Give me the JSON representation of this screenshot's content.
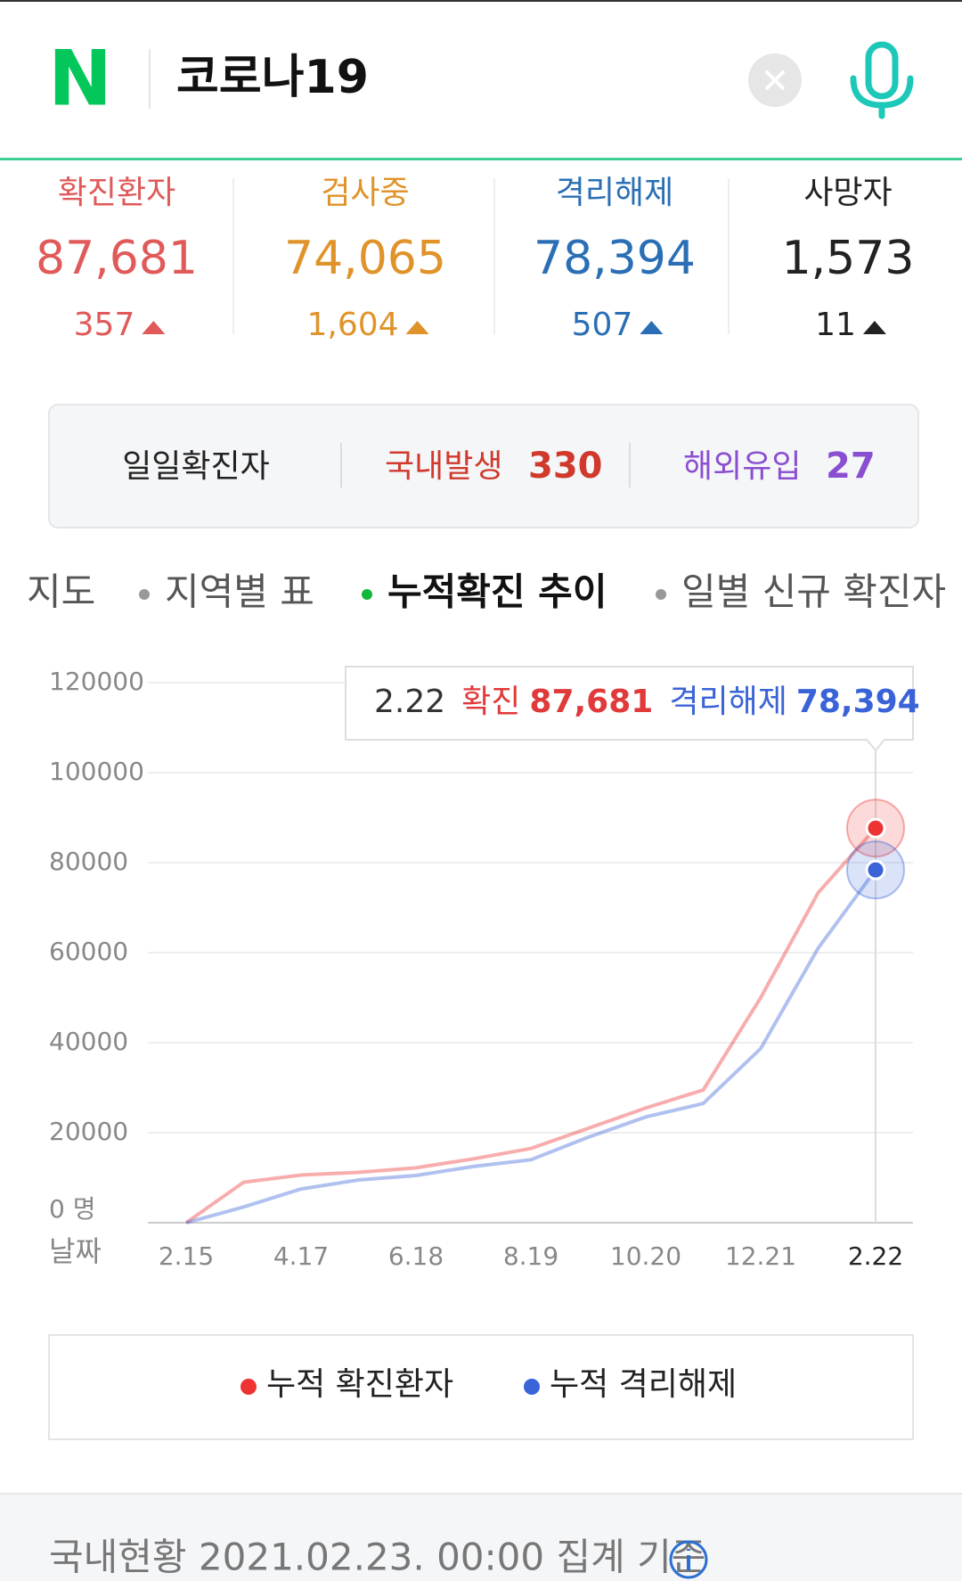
{
  "header": {
    "logo": "N",
    "query": "코로나19"
  },
  "stats": [
    {
      "label": "확진환자",
      "value": "87,681",
      "delta": "357"
    },
    {
      "label": "검사중",
      "value": "74,065",
      "delta": "1,604"
    },
    {
      "label": "격리해제",
      "value": "78,394",
      "delta": "507"
    },
    {
      "label": "사망자",
      "value": "1,573",
      "delta": "11"
    }
  ],
  "daily": {
    "label": "일일확진자",
    "domestic_label": "국내발생",
    "domestic": 330,
    "overseas_label": "해외유입",
    "overseas": 27
  },
  "tabs": [
    "지도",
    "지역별 표",
    "누적확진 추이",
    "일별 신규 확진자"
  ],
  "chart_data": {
    "type": "line",
    "x_label": "날짜",
    "categories": [
      "2.15",
      null,
      "4.17",
      null,
      "6.18",
      null,
      "8.19",
      null,
      "10.20",
      null,
      "12.21",
      null,
      "2.22"
    ],
    "series": [
      {
        "name": "누적 확진환자",
        "color": "#ee3333",
        "values": [
          0,
          9000,
          10600,
          11200,
          12200,
          14200,
          16500,
          21000,
          25500,
          29500,
          50000,
          73300,
          87681
        ]
      },
      {
        "name": "누적 격리해제",
        "color": "#3a63d8",
        "values": [
          0,
          3500,
          7500,
          9500,
          10500,
          12500,
          14000,
          19000,
          23500,
          26500,
          38700,
          61000,
          78394
        ]
      }
    ],
    "ylim": [
      0,
      120000
    ],
    "yticks": [
      {
        "value": 0,
        "label": "0 명"
      },
      20000,
      40000,
      60000,
      80000,
      100000,
      120000
    ],
    "grid": true,
    "tooltip": {
      "date": "2.22",
      "confirmed_label": "확진",
      "confirmed": "87,681",
      "released_label": "격리해제",
      "released": "78,394"
    }
  },
  "footer": {
    "text": "국내현황 2021.02.23. 00:00 집계 기준"
  }
}
